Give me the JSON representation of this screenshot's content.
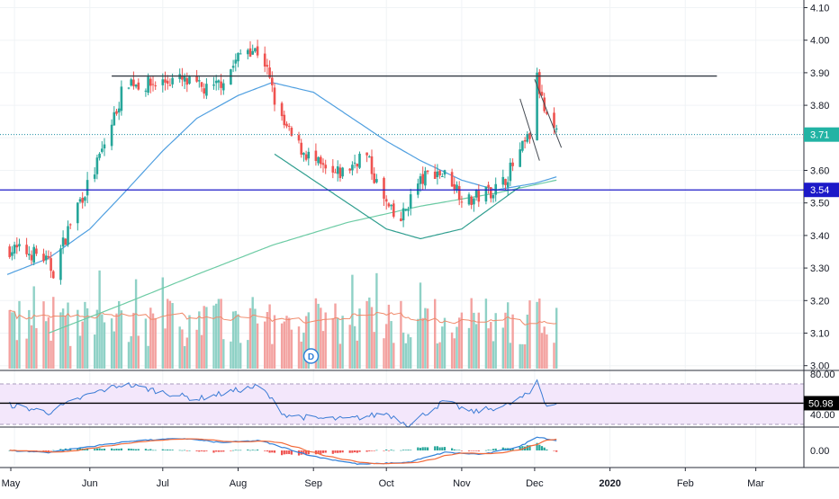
{
  "chart_data": {
    "type": "candlestick",
    "x_ticks": [
      "May",
      "Jun",
      "Jul",
      "Aug",
      "Sep",
      "Oct",
      "Nov",
      "Dec",
      "2020",
      "Feb",
      "Mar"
    ],
    "price_axis": {
      "ticks": [
        "4.10",
        "4.00",
        "3.90",
        "3.80",
        "3.70",
        "3.60",
        "3.50",
        "3.40",
        "3.30",
        "3.20",
        "3.10",
        "3.00"
      ],
      "range": [
        2.98,
        4.12
      ],
      "last_price": "3.71",
      "support_level": "3.54",
      "resistance_level": 3.89
    },
    "rsi_axis": {
      "ticks": [
        "80.00",
        "40.00"
      ],
      "current": "50.98",
      "band": [
        30,
        70
      ]
    },
    "macd_axis": {
      "ticks": [
        "0.00"
      ]
    },
    "dividend_marker": "D",
    "colors": {
      "up": "#26a69a",
      "down": "#ef5350",
      "volume_up": "#8fd1c6",
      "volume_down": "#f3a2a0",
      "sma_fast": "#4f9fe0",
      "sma_slow": "#6ccba4",
      "price_line": "#1e8fa3",
      "support_line": "#1c19c8",
      "rsi": "#3a7bd5",
      "rsi_band_fill": "#f3e7fb",
      "macd": "#2f7fd8",
      "signal": "#f26a3a"
    },
    "anchors": {
      "close": [
        [
          "2019-04-28",
          3.36
        ],
        [
          "2019-05-05",
          3.35
        ],
        [
          "2019-05-12",
          3.34
        ],
        [
          "2019-05-17",
          3.29
        ],
        [
          "2019-05-26",
          3.48
        ],
        [
          "2019-06-02",
          3.58
        ],
        [
          "2019-06-09",
          3.72
        ],
        [
          "2019-06-16",
          3.88
        ],
        [
          "2019-06-23",
          3.86
        ],
        [
          "2019-06-30",
          3.87
        ],
        [
          "2019-07-07",
          3.88
        ],
        [
          "2019-07-14",
          3.86
        ],
        [
          "2019-07-21",
          3.84
        ],
        [
          "2019-07-28",
          3.9
        ],
        [
          "2019-08-04",
          3.98
        ],
        [
          "2019-08-11",
          3.96
        ],
        [
          "2019-08-18",
          3.76
        ],
        [
          "2019-08-25",
          3.68
        ],
        [
          "2019-09-01",
          3.63
        ],
        [
          "2019-09-08",
          3.58
        ],
        [
          "2019-09-15",
          3.6
        ],
        [
          "2019-09-22",
          3.66
        ],
        [
          "2019-09-29",
          3.52
        ],
        [
          "2019-10-06",
          3.43
        ],
        [
          "2019-10-13",
          3.55
        ],
        [
          "2019-10-20",
          3.6
        ],
        [
          "2019-10-27",
          3.58
        ],
        [
          "2019-11-03",
          3.5
        ],
        [
          "2019-11-10",
          3.53
        ],
        [
          "2019-11-17",
          3.55
        ],
        [
          "2019-11-24",
          3.64
        ],
        [
          "2019-11-30",
          3.72
        ],
        [
          "2019-12-02",
          3.88
        ],
        [
          "2019-12-05",
          3.78
        ],
        [
          "2019-12-08",
          3.71
        ],
        [
          "2019-12-10",
          3.71
        ]
      ],
      "sma_fast": [
        [
          "2019-04-28",
          3.28
        ],
        [
          "2019-05-15",
          3.33
        ],
        [
          "2019-06-01",
          3.42
        ],
        [
          "2019-06-15",
          3.53
        ],
        [
          "2019-07-01",
          3.66
        ],
        [
          "2019-07-15",
          3.76
        ],
        [
          "2019-08-01",
          3.83
        ],
        [
          "2019-08-15",
          3.87
        ],
        [
          "2019-09-01",
          3.84
        ],
        [
          "2019-09-15",
          3.77
        ],
        [
          "2019-10-01",
          3.69
        ],
        [
          "2019-10-15",
          3.63
        ],
        [
          "2019-11-01",
          3.57
        ],
        [
          "2019-11-15",
          3.54
        ],
        [
          "2019-12-01",
          3.56
        ],
        [
          "2019-12-10",
          3.58
        ]
      ],
      "sma_slow": [
        [
          "2019-05-15",
          3.1
        ],
        [
          "2019-06-15",
          3.19
        ],
        [
          "2019-07-15",
          3.28
        ],
        [
          "2019-08-15",
          3.37
        ],
        [
          "2019-09-15",
          3.44
        ],
        [
          "2019-10-15",
          3.49
        ],
        [
          "2019-11-15",
          3.53
        ],
        [
          "2019-12-10",
          3.57
        ]
      ],
      "rsi": [
        [
          "2019-04-28",
          50
        ],
        [
          "2019-05-15",
          42
        ],
        [
          "2019-06-01",
          60
        ],
        [
          "2019-06-15",
          70
        ],
        [
          "2019-07-01",
          62
        ],
        [
          "2019-07-15",
          55
        ],
        [
          "2019-08-01",
          64
        ],
        [
          "2019-08-10",
          68
        ],
        [
          "2019-08-20",
          40
        ],
        [
          "2019-09-01",
          36
        ],
        [
          "2019-09-15",
          35
        ],
        [
          "2019-10-01",
          41
        ],
        [
          "2019-10-10",
          30
        ],
        [
          "2019-10-25",
          53
        ],
        [
          "2019-11-05",
          42
        ],
        [
          "2019-11-20",
          49
        ],
        [
          "2019-11-30",
          62
        ],
        [
          "2019-12-02",
          74
        ],
        [
          "2019-12-06",
          48
        ],
        [
          "2019-12-10",
          51
        ]
      ],
      "macd": [
        [
          "2019-04-28",
          0.0
        ],
        [
          "2019-05-15",
          -0.01
        ],
        [
          "2019-06-01",
          0.02
        ],
        [
          "2019-06-20",
          0.05
        ],
        [
          "2019-07-10",
          0.06
        ],
        [
          "2019-07-25",
          0.04
        ],
        [
          "2019-08-10",
          0.05
        ],
        [
          "2019-09-01",
          -0.03
        ],
        [
          "2019-09-20",
          -0.07
        ],
        [
          "2019-10-10",
          -0.06
        ],
        [
          "2019-10-25",
          -0.01
        ],
        [
          "2019-11-10",
          -0.02
        ],
        [
          "2019-11-25",
          0.02
        ],
        [
          "2019-12-02",
          0.07
        ],
        [
          "2019-12-10",
          0.05
        ]
      ]
    },
    "patterns": {
      "resistance": [
        [
          "2019-06-10",
          3.89
        ],
        [
          "2020-02-14",
          3.89
        ]
      ],
      "cup": [
        [
          "2019-08-16",
          3.65
        ],
        [
          "2019-10-01",
          3.42
        ],
        [
          "2019-10-15",
          3.39
        ],
        [
          "2019-11-01",
          3.42
        ],
        [
          "2019-11-25",
          3.55
        ]
      ],
      "flag_upper": [
        [
          "2019-12-01",
          3.88
        ],
        [
          "2019-12-12",
          3.67
        ]
      ],
      "flag_lower": [
        [
          "2019-11-25",
          3.82
        ],
        [
          "2019-12-03",
          3.63
        ]
      ]
    }
  }
}
